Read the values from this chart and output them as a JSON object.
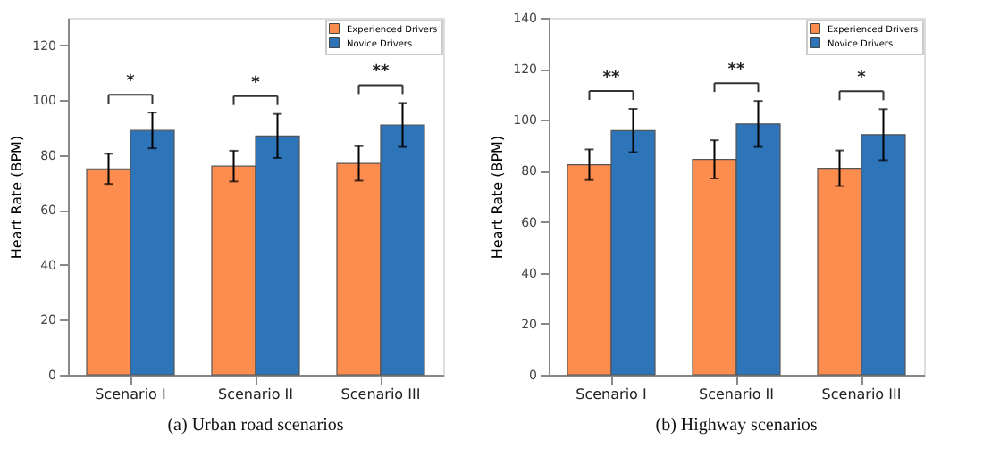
{
  "chart_data": [
    {
      "type": "bar",
      "title": "(a) Urban road scenarios",
      "ylabel": "Heart Rate (BPM)",
      "categories": [
        "Scenario I",
        "Scenario II",
        "Scenario III"
      ],
      "ylim": [
        0,
        130
      ],
      "yticks": [
        0,
        20,
        40,
        60,
        80,
        100,
        120
      ],
      "legend": "top right",
      "grid": false,
      "series": [
        {
          "name": "Experienced Drivers",
          "color": "#fc8d4f",
          "values": [
            75,
            76,
            77
          ],
          "errors": [
            5.5,
            5.6,
            6.3
          ]
        },
        {
          "name": "Novice Drivers",
          "color": "#2e74b8",
          "values": [
            89,
            87,
            91
          ],
          "errors": [
            6.5,
            8,
            8
          ]
        }
      ],
      "annotations": [
        "*",
        "*",
        "**"
      ]
    },
    {
      "type": "bar",
      "title": "(b) Highway scenarios",
      "ylabel": "Heart Rate (BPM)",
      "categories": [
        "Scenario I",
        "Scenario II",
        "Scenario III"
      ],
      "ylim": [
        0,
        140
      ],
      "yticks": [
        0,
        20,
        40,
        60,
        80,
        100,
        120,
        140
      ],
      "legend": "top right",
      "grid": false,
      "series": [
        {
          "name": "Experienced Drivers",
          "color": "#fc8d4f",
          "values": [
            82.4,
            84.5,
            81
          ],
          "errors": [
            6,
            7.5,
            7
          ]
        },
        {
          "name": "Novice Drivers",
          "color": "#2e74b8",
          "values": [
            95.8,
            98.4,
            94.2
          ],
          "errors": [
            8.5,
            9,
            10
          ]
        }
      ],
      "annotations": [
        "**",
        "**",
        "*"
      ]
    }
  ]
}
